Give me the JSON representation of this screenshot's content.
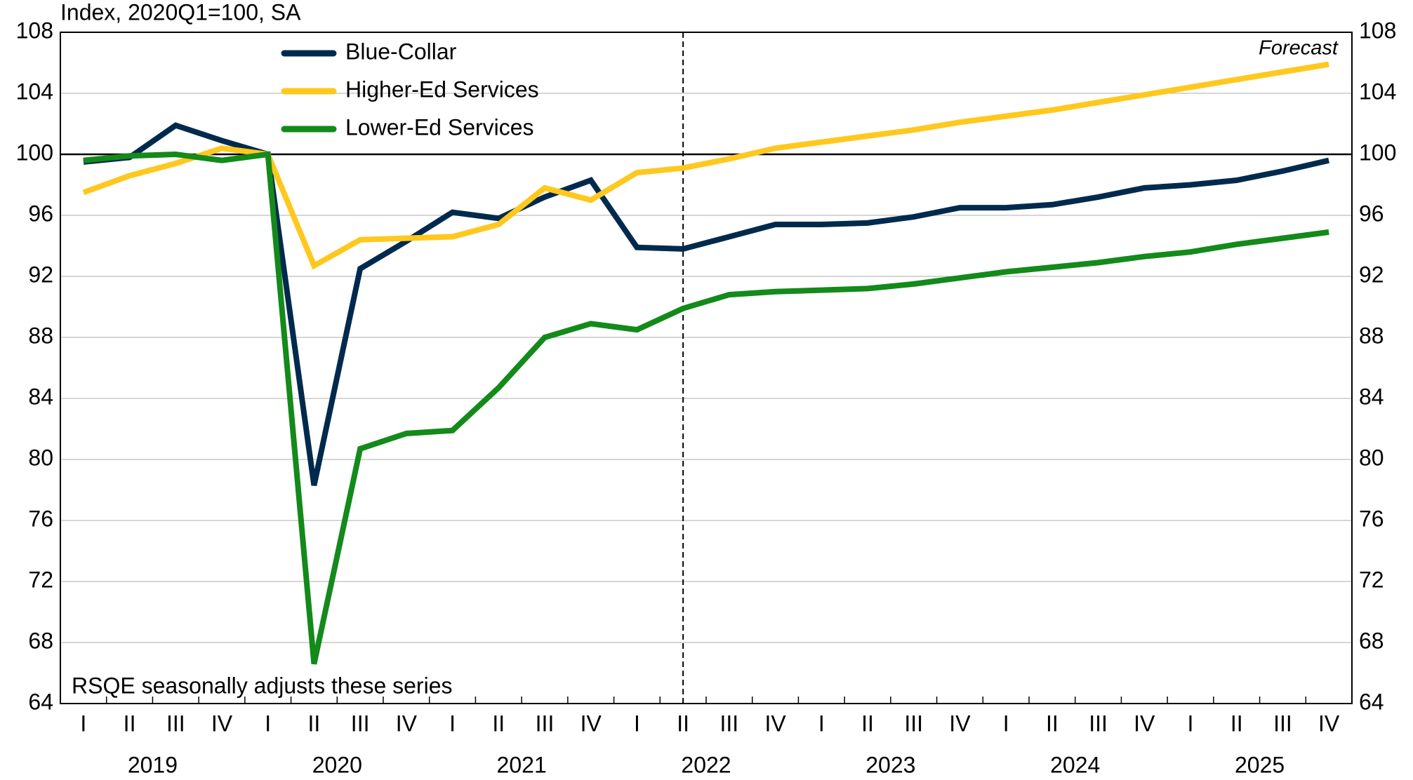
{
  "chart_data": {
    "type": "line",
    "axis_label": "Index, 2020Q1=100, SA",
    "annotations": [
      "Forecast",
      "RSQE seasonally adjusts these series"
    ],
    "categories": [
      "I",
      "II",
      "III",
      "IV",
      "I",
      "II",
      "III",
      "IV",
      "I",
      "II",
      "III",
      "IV",
      "I",
      "II",
      "III",
      "IV",
      "I",
      "II",
      "III",
      "IV",
      "I",
      "II",
      "III",
      "IV",
      "I",
      "II",
      "III",
      "IV"
    ],
    "years": [
      "2019",
      "2020",
      "2021",
      "2022",
      "2023",
      "2024",
      "2025"
    ],
    "forecast_start": "II",
    "reference_line": 100,
    "series": [
      {
        "name": "Blue-Collar",
        "color": "#002a4d",
        "values": [
          99.5,
          99.8,
          101.9,
          100.9,
          100,
          78.3,
          92.5,
          94.3,
          96.2,
          95.8,
          97.2,
          98.3,
          93.9,
          93.8,
          94.6,
          95.4,
          95.4,
          95.5,
          95.9,
          96.5,
          96.5,
          96.7,
          97.2,
          97.8,
          98.0,
          98.3,
          98.9,
          99.6
        ]
      },
      {
        "name": "Higher-Ed Services",
        "color": "#ffc81e",
        "values": [
          97.5,
          98.6,
          99.4,
          100.4,
          100,
          92.7,
          94.4,
          94.5,
          94.6,
          95.4,
          97.8,
          97.0,
          98.8,
          99.1,
          99.7,
          100.4,
          100.8,
          101.2,
          101.6,
          102.1,
          102.5,
          102.9,
          103.4,
          103.9,
          104.4,
          104.9,
          105.4,
          105.9
        ]
      },
      {
        "name": "Lower-Ed Services",
        "color": "#138a1a",
        "values": [
          99.6,
          99.9,
          100.0,
          99.6,
          100,
          66.6,
          80.7,
          81.7,
          81.9,
          84.7,
          88.0,
          88.9,
          88.5,
          89.9,
          90.8,
          91.0,
          91.1,
          91.2,
          91.5,
          91.9,
          92.3,
          92.6,
          92.9,
          93.3,
          93.6,
          94.1,
          94.5,
          94.9
        ]
      }
    ],
    "ylim": [
      64,
      108
    ],
    "yticks": [
      64,
      68,
      72,
      76,
      80,
      84,
      88,
      92,
      96,
      100,
      104,
      108
    ],
    "y2lim": [
      64,
      108
    ],
    "y2ticks": [
      64,
      68,
      72,
      76,
      80,
      84,
      88,
      92,
      96,
      100,
      104,
      108
    ],
    "grid": true,
    "legend": "upper left"
  }
}
